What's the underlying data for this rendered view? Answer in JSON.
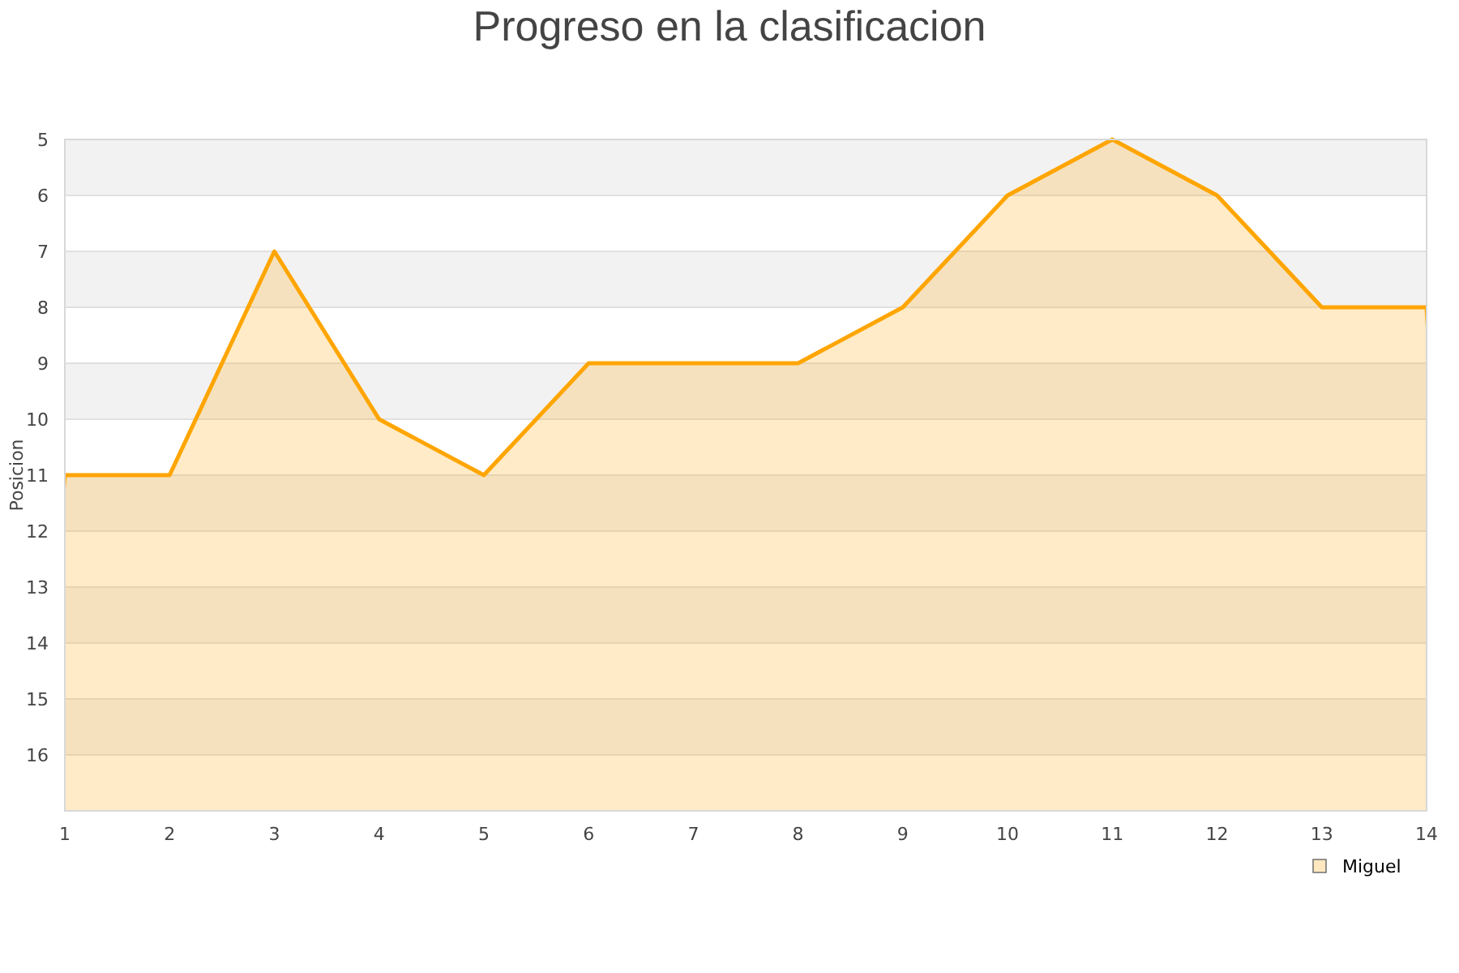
{
  "chart_data": {
    "type": "area",
    "title": "Progreso en la clasificacion",
    "ylabel": "Posicion",
    "x": [
      1,
      2,
      3,
      4,
      5,
      6,
      7,
      8,
      9,
      10,
      11,
      12,
      13,
      14
    ],
    "series": [
      {
        "name": "Miguel",
        "color": "#ffa500",
        "values": [
          11,
          11,
          7,
          10,
          11,
          9,
          9,
          9,
          8,
          6,
          5,
          6,
          8,
          8
        ]
      }
    ],
    "xlim": [
      1,
      14
    ],
    "xticks": [
      1,
      2,
      3,
      4,
      5,
      6,
      7,
      8,
      9,
      10,
      11,
      12,
      13,
      14
    ],
    "ylim": [
      17,
      5
    ],
    "yticks": [
      5,
      6,
      7,
      8,
      9,
      10,
      11,
      12,
      13,
      14,
      15,
      16
    ],
    "bands": [
      {
        "axis": "y",
        "from": 5,
        "to": 6,
        "color": "#f2f2f2"
      },
      {
        "axis": "y",
        "from": 7,
        "to": 8,
        "color": "#f2f2f2"
      },
      {
        "axis": "y",
        "from": 9,
        "to": 10,
        "color": "#f2f2f2"
      },
      {
        "axis": "y",
        "from": 11,
        "to": 12,
        "color": "#f2f2f2"
      },
      {
        "axis": "y",
        "from": 13,
        "to": 14,
        "color": "#f2f2f2"
      },
      {
        "axis": "y",
        "from": 15,
        "to": 16,
        "color": "#f2f2f2"
      }
    ],
    "grid": "y",
    "legend": "bottom right"
  }
}
